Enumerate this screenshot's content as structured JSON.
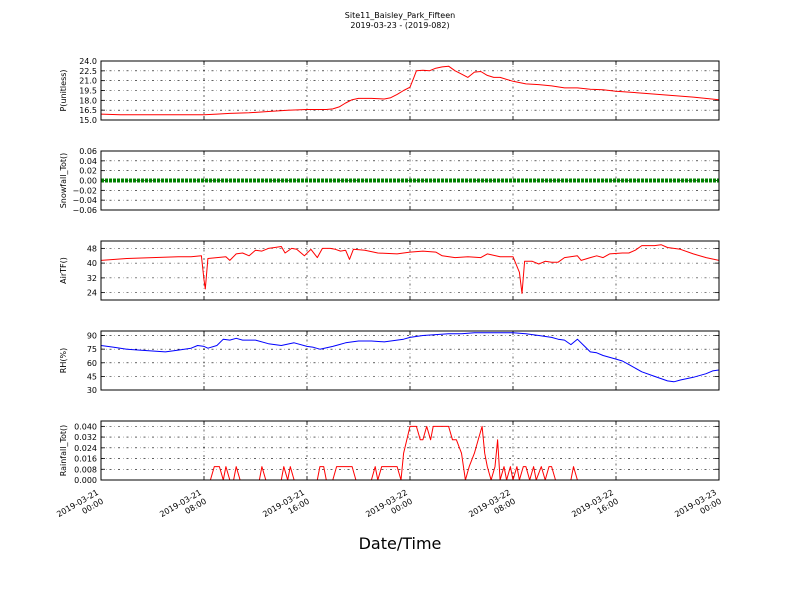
{
  "title": "Site11_Baisley_Park_Fifteen",
  "subtitle": "2019-03-23 - (2019-082)",
  "xlabel": "Date/Time",
  "chart_data": {
    "type": "line",
    "grid": true,
    "x_range": [
      0,
      48
    ],
    "x_ticks": [
      {
        "x": 0,
        "line1": "2019-03-21",
        "line2": "00:00"
      },
      {
        "x": 8,
        "line1": "2019-03-21",
        "line2": "08:00"
      },
      {
        "x": 16,
        "line1": "2019-03-21",
        "line2": "16:00"
      },
      {
        "x": 24,
        "line1": "2019-03-22",
        "line2": "00:00"
      },
      {
        "x": 32,
        "line1": "2019-03-22",
        "line2": "08:00"
      },
      {
        "x": 40,
        "line1": "2019-03-22",
        "line2": "16:00"
      },
      {
        "x": 48,
        "line1": "2019-03-23",
        "line2": "00:00"
      }
    ],
    "panels": [
      {
        "ylabel": "P(unitless)",
        "color": "#ff0000",
        "ylim": [
          15.0,
          24.0
        ],
        "yticks": [
          "15.0",
          "16.5",
          "18.0",
          "19.5",
          "21.0",
          "22.5",
          "24.0"
        ],
        "points": [
          [
            0,
            15.9
          ],
          [
            1.5,
            15.8
          ],
          [
            3,
            15.8
          ],
          [
            6,
            15.8
          ],
          [
            8,
            15.8
          ],
          [
            9,
            15.9
          ],
          [
            10,
            16.0
          ],
          [
            11.5,
            16.1
          ],
          [
            13,
            16.3
          ],
          [
            14.5,
            16.5
          ],
          [
            16,
            16.6
          ],
          [
            17.5,
            16.6
          ],
          [
            18,
            16.7
          ],
          [
            18.5,
            17.0
          ],
          [
            19,
            17.6
          ],
          [
            19.5,
            18.1
          ],
          [
            20,
            18.3
          ],
          [
            21,
            18.3
          ],
          [
            22,
            18.2
          ],
          [
            22.5,
            18.4
          ],
          [
            23,
            18.9
          ],
          [
            23.5,
            19.5
          ],
          [
            24,
            20.0
          ],
          [
            24.3,
            21.5
          ],
          [
            24.5,
            22.5
          ],
          [
            25,
            22.6
          ],
          [
            25.5,
            22.5
          ],
          [
            26,
            22.9
          ],
          [
            26.5,
            23.1
          ],
          [
            27,
            23.2
          ],
          [
            27.5,
            22.5
          ],
          [
            28,
            22.0
          ],
          [
            28.5,
            21.5
          ],
          [
            29,
            22.3
          ],
          [
            29.5,
            22.4
          ],
          [
            30,
            21.8
          ],
          [
            30.5,
            21.5
          ],
          [
            31,
            21.5
          ],
          [
            32,
            20.9
          ],
          [
            33,
            20.5
          ],
          [
            34,
            20.4
          ],
          [
            35,
            20.2
          ],
          [
            36,
            19.9
          ],
          [
            37,
            19.9
          ],
          [
            38,
            19.7
          ],
          [
            39,
            19.6
          ],
          [
            40,
            19.4
          ],
          [
            42,
            19.1
          ],
          [
            44,
            18.8
          ],
          [
            46,
            18.5
          ],
          [
            48,
            18.1
          ]
        ]
      },
      {
        "ylabel": "Snowfall_Tot()",
        "color": "#008000",
        "ylim": [
          -0.06,
          0.06
        ],
        "yticks": [
          "−0.06",
          "−0.04",
          "−0.02",
          "0.00",
          "0.02",
          "0.04",
          "0.06"
        ],
        "points": [
          [
            0,
            0.0
          ],
          [
            48,
            0.0
          ]
        ],
        "markers": true
      },
      {
        "ylabel": "AirTF()",
        "color": "#ff0000",
        "ylim": [
          20,
          52
        ],
        "yticks": [
          "24",
          "32",
          "40",
          "48"
        ],
        "points": [
          [
            0,
            41.5
          ],
          [
            2,
            42.5
          ],
          [
            4,
            43
          ],
          [
            6,
            43.5
          ],
          [
            7,
            43.5
          ],
          [
            7.8,
            44
          ],
          [
            8,
            31
          ],
          [
            8.1,
            26
          ],
          [
            8.3,
            42.5
          ],
          [
            9,
            43
          ],
          [
            9.7,
            43.5
          ],
          [
            10,
            41.5
          ],
          [
            10.5,
            45
          ],
          [
            11,
            45.5
          ],
          [
            11.5,
            44
          ],
          [
            12,
            47
          ],
          [
            12.5,
            46.5
          ],
          [
            13,
            48
          ],
          [
            13.5,
            48.5
          ],
          [
            14,
            49
          ],
          [
            14.3,
            45.5
          ],
          [
            14.8,
            48
          ],
          [
            15.2,
            47.5
          ],
          [
            15.8,
            44
          ],
          [
            16.3,
            47.5
          ],
          [
            16.8,
            43
          ],
          [
            17.2,
            48
          ],
          [
            17.8,
            48
          ],
          [
            18.2,
            47.5
          ],
          [
            18.6,
            46.5
          ],
          [
            19,
            47
          ],
          [
            19.3,
            42
          ],
          [
            19.6,
            47.5
          ],
          [
            20.5,
            47
          ],
          [
            21.5,
            45.5
          ],
          [
            23,
            45
          ],
          [
            24,
            46
          ],
          [
            25,
            46.5
          ],
          [
            26,
            46
          ],
          [
            26.5,
            44
          ],
          [
            27.5,
            43
          ],
          [
            28.5,
            43.5
          ],
          [
            29.5,
            43
          ],
          [
            30,
            45
          ],
          [
            31,
            43.5
          ],
          [
            32,
            43.5
          ],
          [
            32.5,
            35
          ],
          [
            32.7,
            23.5
          ],
          [
            32.9,
            41
          ],
          [
            33.5,
            41
          ],
          [
            34,
            39.5
          ],
          [
            34.5,
            41
          ],
          [
            35,
            40.5
          ],
          [
            35.5,
            40.5
          ],
          [
            36,
            43
          ],
          [
            37,
            44
          ],
          [
            37.3,
            41.5
          ],
          [
            38,
            43
          ],
          [
            38.5,
            44
          ],
          [
            39,
            43
          ],
          [
            39.5,
            45
          ],
          [
            40.5,
            45.5
          ],
          [
            41,
            45.5
          ],
          [
            41.5,
            47
          ],
          [
            42,
            49.5
          ],
          [
            42.5,
            49.5
          ],
          [
            43,
            49.5
          ],
          [
            43.5,
            50
          ],
          [
            44,
            48.5
          ],
          [
            45,
            47.5
          ],
          [
            46,
            45
          ],
          [
            47,
            43
          ],
          [
            48,
            41.5
          ]
        ]
      },
      {
        "ylabel": "RH(%)",
        "color": "#0000ff",
        "ylim": [
          30,
          95
        ],
        "yticks": [
          "30",
          "45",
          "60",
          "75",
          "90"
        ],
        "points": [
          [
            0,
            79
          ],
          [
            1,
            77
          ],
          [
            2,
            75
          ],
          [
            3,
            74
          ],
          [
            4,
            73
          ],
          [
            5,
            72
          ],
          [
            6,
            74
          ],
          [
            7,
            76
          ],
          [
            7.5,
            79
          ],
          [
            8,
            78
          ],
          [
            8.3,
            76
          ],
          [
            9,
            79
          ],
          [
            9.5,
            86
          ],
          [
            10,
            85
          ],
          [
            10.5,
            87
          ],
          [
            11,
            85
          ],
          [
            12,
            85
          ],
          [
            13,
            81
          ],
          [
            14,
            79
          ],
          [
            15,
            82
          ],
          [
            16,
            78
          ],
          [
            16.5,
            77
          ],
          [
            17,
            75
          ],
          [
            18,
            78
          ],
          [
            18.5,
            80
          ],
          [
            19,
            82
          ],
          [
            20,
            84
          ],
          [
            21,
            84
          ],
          [
            22,
            83
          ],
          [
            23,
            85
          ],
          [
            23.5,
            86
          ],
          [
            24,
            88
          ],
          [
            25,
            90
          ],
          [
            26,
            91
          ],
          [
            27,
            92
          ],
          [
            28,
            92
          ],
          [
            29,
            93
          ],
          [
            30,
            93
          ],
          [
            31,
            93
          ],
          [
            32,
            93
          ],
          [
            33,
            92
          ],
          [
            34,
            90
          ],
          [
            35,
            88
          ],
          [
            35.5,
            86
          ],
          [
            36,
            85
          ],
          [
            36.5,
            80
          ],
          [
            37,
            86
          ],
          [
            37.5,
            79
          ],
          [
            38,
            72
          ],
          [
            38.5,
            71
          ],
          [
            39,
            68
          ],
          [
            40,
            64
          ],
          [
            40.5,
            62
          ],
          [
            41,
            58
          ],
          [
            42,
            50
          ],
          [
            43,
            45
          ],
          [
            44,
            40
          ],
          [
            44.5,
            39
          ],
          [
            45,
            41
          ],
          [
            46,
            44
          ],
          [
            47,
            48
          ],
          [
            47.5,
            51
          ],
          [
            48,
            52
          ]
        ]
      },
      {
        "ylabel": "Rainfall_Tot()",
        "color": "#ff0000",
        "ylim": [
          0.0,
          0.044
        ],
        "yticks": [
          "0.000",
          "0.008",
          "0.016",
          "0.024",
          "0.032",
          "0.040"
        ],
        "points": [
          [
            0,
            0
          ],
          [
            8.5,
            0
          ],
          [
            8.8,
            0.01
          ],
          [
            9.2,
            0.01
          ],
          [
            9.5,
            0
          ],
          [
            9.7,
            0.01
          ],
          [
            10,
            0
          ],
          [
            10.3,
            0
          ],
          [
            10.5,
            0.01
          ],
          [
            10.8,
            0
          ],
          [
            12.3,
            0
          ],
          [
            12.5,
            0.01
          ],
          [
            12.8,
            0
          ],
          [
            14,
            0
          ],
          [
            14.2,
            0.01
          ],
          [
            14.5,
            0
          ],
          [
            14.7,
            0.01
          ],
          [
            15,
            0
          ],
          [
            16.8,
            0
          ],
          [
            17,
            0.01
          ],
          [
            17.3,
            0.01
          ],
          [
            17.5,
            0
          ],
          [
            18,
            0
          ],
          [
            18.3,
            0.01
          ],
          [
            19.5,
            0.01
          ],
          [
            19.8,
            0
          ],
          [
            21,
            0
          ],
          [
            21.3,
            0.01
          ],
          [
            21.5,
            0
          ],
          [
            21.8,
            0.01
          ],
          [
            23,
            0.01
          ],
          [
            23.3,
            0
          ],
          [
            23.5,
            0.02
          ],
          [
            24,
            0.04
          ],
          [
            24.5,
            0.04
          ],
          [
            24.8,
            0.03
          ],
          [
            25,
            0.03
          ],
          [
            25.3,
            0.04
          ],
          [
            25.6,
            0.03
          ],
          [
            25.8,
            0.04
          ],
          [
            27,
            0.04
          ],
          [
            27.3,
            0.03
          ],
          [
            27.6,
            0.03
          ],
          [
            28,
            0.02
          ],
          [
            28.3,
            0
          ],
          [
            28.6,
            0.01
          ],
          [
            29,
            0.02
          ],
          [
            29.3,
            0.03
          ],
          [
            29.6,
            0.04
          ],
          [
            29.8,
            0.02
          ],
          [
            30,
            0.01
          ],
          [
            30.3,
            0
          ],
          [
            30.6,
            0.01
          ],
          [
            30.8,
            0.03
          ],
          [
            31,
            0
          ],
          [
            31.3,
            0.01
          ],
          [
            31.5,
            0
          ],
          [
            31.8,
            0.01
          ],
          [
            32,
            0
          ],
          [
            32.3,
            0.01
          ],
          [
            32.5,
            0
          ],
          [
            32.8,
            0.01
          ],
          [
            33,
            0.01
          ],
          [
            33.3,
            0
          ],
          [
            33.6,
            0.01
          ],
          [
            33.8,
            0
          ],
          [
            34.2,
            0.01
          ],
          [
            34.5,
            0
          ],
          [
            34.8,
            0.01
          ],
          [
            35,
            0.01
          ],
          [
            35.3,
            0
          ],
          [
            36.5,
            0
          ],
          [
            36.7,
            0.01
          ],
          [
            37,
            0
          ],
          [
            48,
            0
          ]
        ]
      }
    ]
  }
}
